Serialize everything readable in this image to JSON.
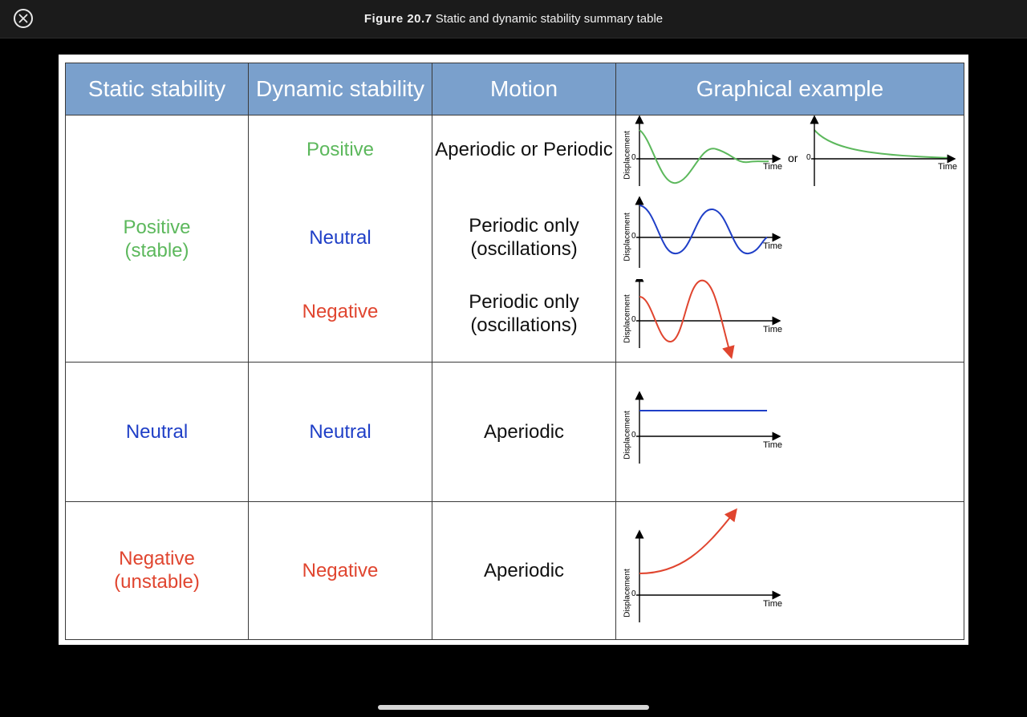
{
  "caption": {
    "figure_label": "Figure 20.7",
    "title": "Static and dynamic stability summary table"
  },
  "table": {
    "headers": [
      "Static stability",
      "Dynamic stability",
      "Motion",
      "Graphical example"
    ],
    "rows": [
      {
        "static": "Positive\n(stable)",
        "dynamic": "Positive",
        "motion": "Aperiodic or Periodic"
      },
      {
        "dynamic": "Neutral",
        "motion": "Periodic only\n(oscillations)"
      },
      {
        "dynamic": "Negative",
        "motion": "Periodic only\n(oscillations)"
      },
      {
        "static": "Neutral",
        "dynamic": "Neutral",
        "motion": "Aperiodic"
      },
      {
        "static": "Negative\n(unstable)",
        "dynamic": "Negative",
        "motion": "Aperiodic"
      }
    ]
  },
  "graph_labels": {
    "y_axis": "Displacement",
    "x_axis": "Time",
    "origin": "0",
    "or": "or"
  },
  "colors": {
    "positive": "#5cb85c",
    "neutral": "#1f3fc7",
    "negative": "#e0452f",
    "header_bg": "#7aa0cc"
  }
}
